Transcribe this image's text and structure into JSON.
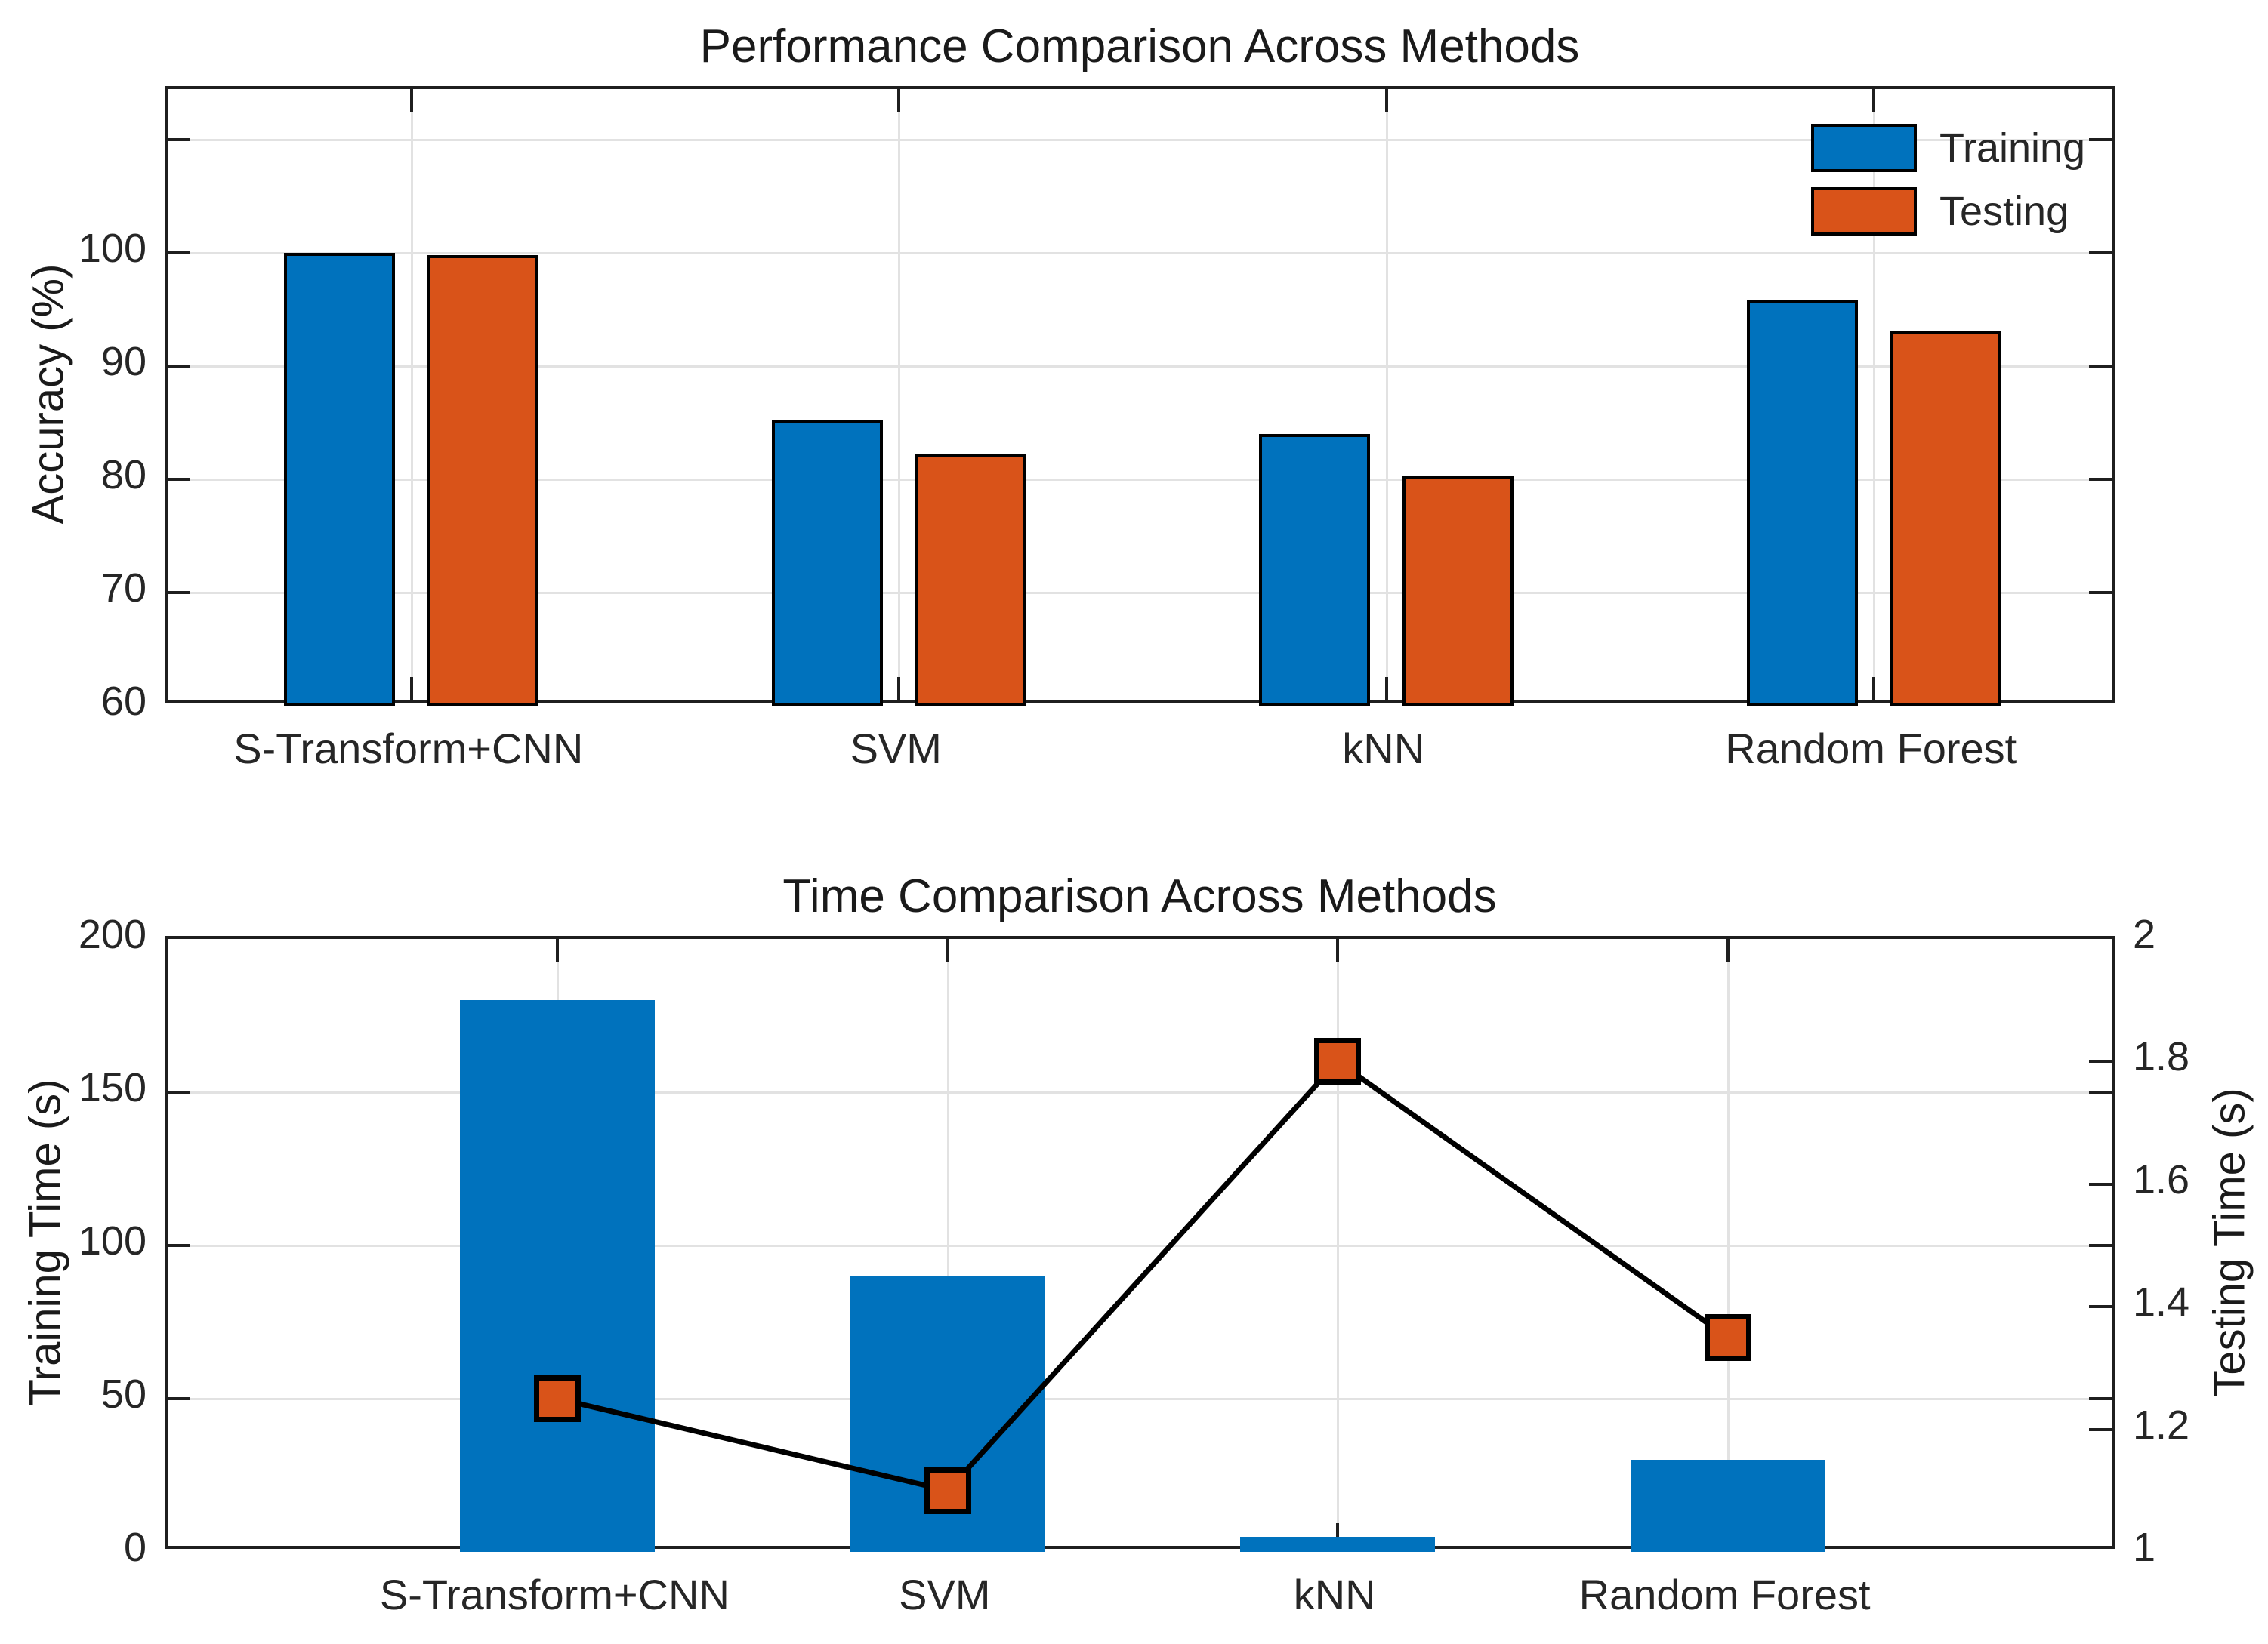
{
  "colors": {
    "training_blue": "#0072BD",
    "testing_orange": "#D95319",
    "line_black": "#000000",
    "grid_gray": "#E2E2E2",
    "axis_dark": "#1F1F1F",
    "tick_text": "#262626"
  },
  "chart_data": [
    {
      "type": "bar",
      "title": "Performance Comparison Across Methods",
      "ylabel": "Accuracy (%)",
      "categories": [
        "S-Transform+CNN",
        "SVM",
        "kNN",
        "Random Forest"
      ],
      "series": [
        {
          "name": "Training",
          "color": "#0072BD",
          "values": [
            100,
            85.2,
            84,
            95.8
          ]
        },
        {
          "name": "Testing",
          "color": "#D95319",
          "values": [
            99.8,
            82.3,
            80.3,
            93.1
          ]
        }
      ],
      "legend": [
        {
          "label": "Training",
          "color": "#0072BD"
        },
        {
          "label": "Testing",
          "color": "#D95319"
        }
      ],
      "legend_position": "top-right",
      "grid": true,
      "ylim": [
        60,
        114.5
      ],
      "yticks": [
        60,
        70,
        80,
        90,
        100,
        110
      ],
      "ytick_labels": [
        "60",
        "70",
        "80",
        "90",
        "100",
        ""
      ],
      "xlim": [
        0.5,
        4.5
      ],
      "x": [
        1,
        2,
        3,
        4
      ],
      "bar_width_units": 0.228,
      "bar_offset_units": 0.147
    },
    {
      "type": "bar+line",
      "title": "Time Comparison Across Methods",
      "ylabel_left": "Training Time (s)",
      "ylabel_right": "Testing Time (s)",
      "categories": [
        "S-Transform+CNN",
        "SVM",
        "kNN",
        "Random Forest"
      ],
      "bar_series": {
        "name": "Training Time",
        "axis": "left",
        "color": "#0072BD",
        "values": [
          180,
          90,
          5,
          30
        ]
      },
      "line_series": {
        "name": "Testing Time",
        "axis": "right",
        "color": "#000000",
        "marker": "square",
        "marker_fill": "#D95319",
        "values": [
          1.25,
          1.1,
          1.8,
          1.35
        ]
      },
      "grid": true,
      "ylim_left": [
        0,
        200
      ],
      "yticks_left": [
        0,
        50,
        100,
        150,
        200
      ],
      "ytick_labels_left": [
        "0",
        "50",
        "100",
        "150",
        "200"
      ],
      "ylim_right": [
        1,
        2
      ],
      "yticks_right": [
        1,
        1.2,
        1.4,
        1.6,
        1.8,
        2
      ],
      "ytick_labels_right": [
        "1",
        "1.2",
        "1.4",
        "1.6",
        "1.8",
        "2"
      ],
      "xlim": [
        0,
        5
      ],
      "x": [
        1,
        2,
        3,
        4
      ],
      "bar_width_units": 0.5
    }
  ]
}
